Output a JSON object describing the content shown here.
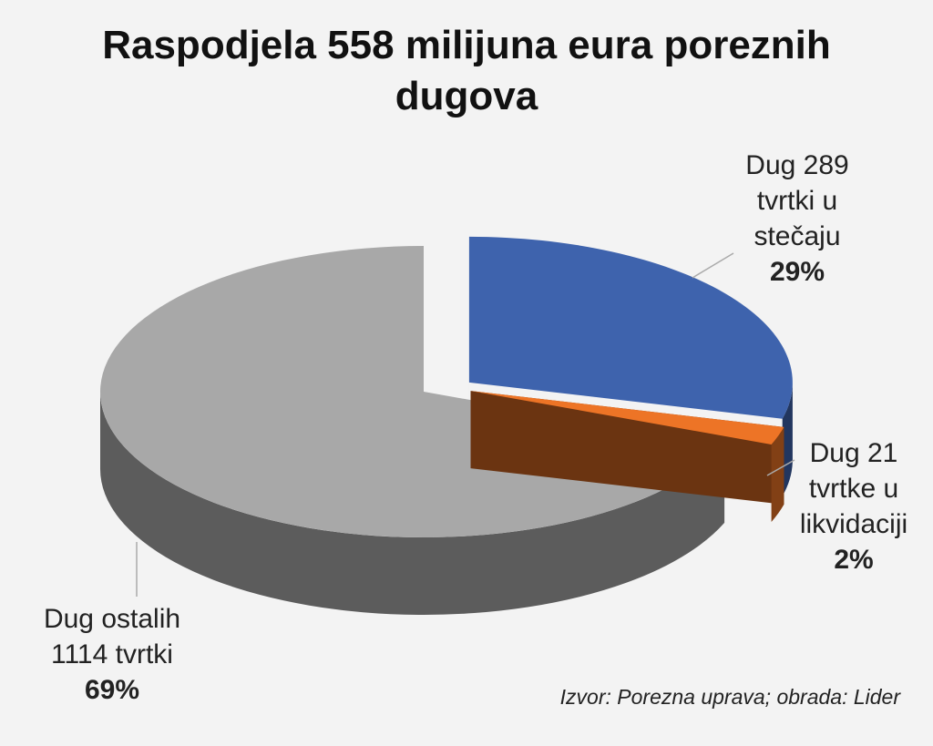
{
  "chart_data": {
    "type": "pie",
    "title": "Raspodjela 558 milijuna eura poreznih dugova",
    "categories": [
      "Dug 289 tvrtki u stečaju",
      "Dug 21 tvrtke u likvidaciji",
      "Dug ostalih 1114 tvrtki"
    ],
    "values": [
      29,
      2,
      69
    ],
    "value_labels": [
      "29%",
      "2%",
      "69%"
    ],
    "colors": [
      "#3e63ad",
      "#ed7426",
      "#a8a8a8"
    ],
    "source": "Izvor: Porezna uprava; obrada: Lider"
  }
}
